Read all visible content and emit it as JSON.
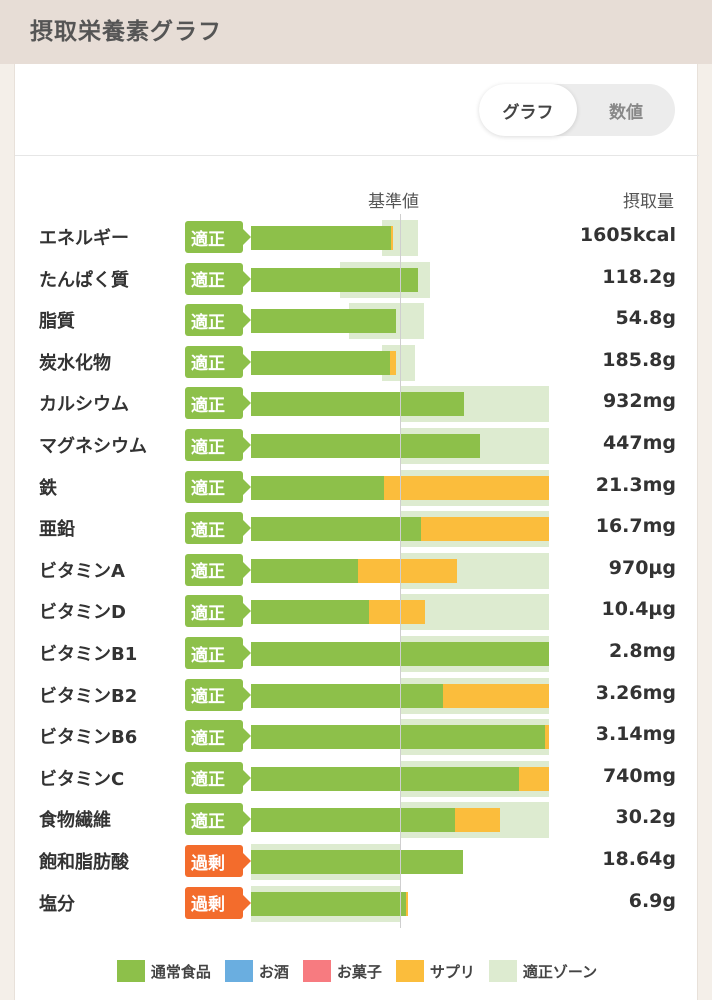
{
  "header": {
    "title": "摂取栄養素グラフ"
  },
  "toggle": {
    "graph_label": "グラフ",
    "number_label": "数値"
  },
  "columns": {
    "reference": "基準値",
    "intake": "摂取量"
  },
  "colors": {
    "food": "#8dc04a",
    "alcohol": "#6aaee0",
    "snack": "#f77b80",
    "supplement": "#fbbd3c",
    "zone": "#ddebd0",
    "badge_ok": "#8dc04a",
    "badge_over": "#f36c2c"
  },
  "legend": [
    {
      "label": "通常食品",
      "color": "#8dc04a"
    },
    {
      "label": "お酒",
      "color": "#6aaee0"
    },
    {
      "label": "お菓子",
      "color": "#f77b80"
    },
    {
      "label": "サプリ",
      "color": "#fbbd3c"
    },
    {
      "label": "適正ゾーン",
      "color": "#ddebd0"
    }
  ],
  "chart_data": {
    "type": "bar",
    "reference_fraction": 0.5,
    "rows": [
      {
        "name": "エネルギー",
        "status": "適正",
        "status_type": "ok",
        "value": "1605kcal",
        "food": 0.47,
        "supplement": 0.005,
        "zone": [
          0.44,
          0.56
        ]
      },
      {
        "name": "たんぱく質",
        "status": "適正",
        "status_type": "ok",
        "value": "118.2g",
        "food": 0.56,
        "supplement": 0.0,
        "zone": [
          0.3,
          0.6
        ]
      },
      {
        "name": "脂質",
        "status": "適正",
        "status_type": "ok",
        "value": "54.8g",
        "food": 0.485,
        "supplement": 0.0,
        "zone": [
          0.33,
          0.58
        ]
      },
      {
        "name": "炭水化物",
        "status": "適正",
        "status_type": "ok",
        "value": "185.8g",
        "food": 0.465,
        "supplement": 0.02,
        "zone": [
          0.44,
          0.55
        ]
      },
      {
        "name": "カルシウム",
        "status": "適正",
        "status_type": "ok",
        "value": "932mg",
        "food": 0.715,
        "supplement": 0.0,
        "zone": [
          0.5,
          1.0
        ]
      },
      {
        "name": "マグネシウム",
        "status": "適正",
        "status_type": "ok",
        "value": "447mg",
        "food": 0.77,
        "supplement": 0.0,
        "zone": [
          0.5,
          1.0
        ]
      },
      {
        "name": "鉄",
        "status": "適正",
        "status_type": "ok",
        "value": "21.3mg",
        "food": 0.445,
        "supplement": 0.555,
        "zone": [
          0.5,
          1.0
        ]
      },
      {
        "name": "亜鉛",
        "status": "適正",
        "status_type": "ok",
        "value": "16.7mg",
        "food": 0.57,
        "supplement": 0.43,
        "zone": [
          0.5,
          1.0
        ]
      },
      {
        "name": "ビタミンA",
        "status": "適正",
        "status_type": "ok",
        "value": "970µg",
        "food": 0.36,
        "supplement": 0.33,
        "zone": [
          0.5,
          1.0
        ]
      },
      {
        "name": "ビタミンD",
        "status": "適正",
        "status_type": "ok",
        "value": "10.4µg",
        "food": 0.395,
        "supplement": 0.19,
        "zone": [
          0.5,
          1.0
        ]
      },
      {
        "name": "ビタミンB1",
        "status": "適正",
        "status_type": "ok",
        "value": "2.8mg",
        "food": 1.0,
        "supplement": 0.0,
        "zone": [
          0.5,
          1.0
        ]
      },
      {
        "name": "ビタミンB2",
        "status": "適正",
        "status_type": "ok",
        "value": "3.26mg",
        "food": 0.645,
        "supplement": 0.355,
        "zone": [
          0.5,
          1.0
        ]
      },
      {
        "name": "ビタミンB6",
        "status": "適正",
        "status_type": "ok",
        "value": "3.14mg",
        "food": 0.985,
        "supplement": 0.015,
        "zone": [
          0.5,
          1.0
        ]
      },
      {
        "name": "ビタミンC",
        "status": "適正",
        "status_type": "ok",
        "value": "740mg",
        "food": 0.9,
        "supplement": 0.1,
        "zone": [
          0.5,
          1.0
        ]
      },
      {
        "name": "食物繊維",
        "status": "適正",
        "status_type": "ok",
        "value": "30.2g",
        "food": 0.685,
        "supplement": 0.15,
        "zone": [
          0.5,
          1.0
        ]
      },
      {
        "name": "飽和脂肪酸",
        "status": "過剰",
        "status_type": "over",
        "value": "18.64g",
        "food": 0.71,
        "supplement": 0.0,
        "zone": [
          0.0,
          0.5
        ]
      },
      {
        "name": "塩分",
        "status": "過剰",
        "status_type": "over",
        "value": "6.9g",
        "food": 0.52,
        "supplement": 0.008,
        "zone": [
          0.0,
          0.5
        ]
      }
    ]
  }
}
